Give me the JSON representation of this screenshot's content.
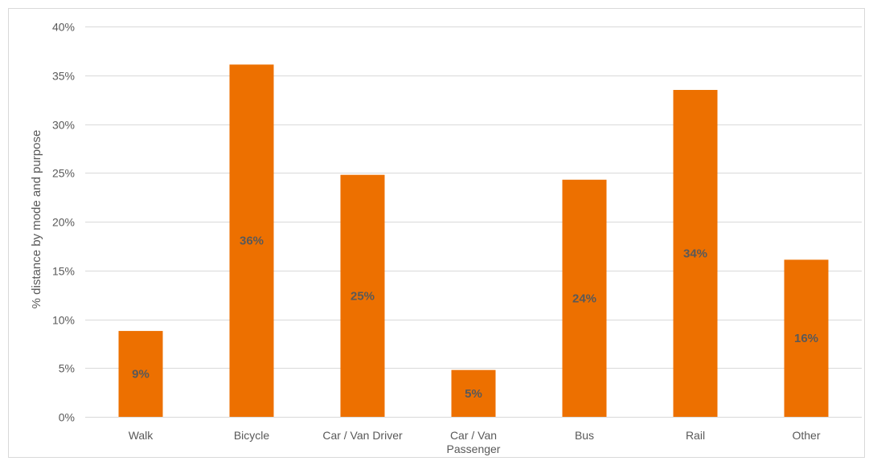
{
  "colors": {
    "bar": "#ED7000",
    "grid": "#d9d9d9",
    "text": "#595959"
  },
  "chart_data": {
    "type": "bar",
    "title": "",
    "xlabel": "",
    "ylabel": "% distance by mode and purpose",
    "categories": [
      "Walk",
      "Bicycle",
      "Car / Van Driver",
      "Car / Van Passenger",
      "Bus",
      "Rail",
      "Other"
    ],
    "category_lines": [
      [
        "Walk"
      ],
      [
        "Bicycle"
      ],
      [
        "Car / Van Driver"
      ],
      [
        "Car / Van",
        "Passenger"
      ],
      [
        "Bus"
      ],
      [
        "Rail"
      ],
      [
        "Other"
      ]
    ],
    "values": [
      8.8,
      36.1,
      24.8,
      4.8,
      24.3,
      33.5,
      16.1
    ],
    "data_labels": [
      "9%",
      "36%",
      "25%",
      "5%",
      "24%",
      "34%",
      "16%"
    ],
    "ylim": [
      0,
      40
    ],
    "yticks": [
      0,
      5,
      10,
      15,
      20,
      25,
      30,
      35,
      40
    ],
    "ytick_labels": [
      "0%",
      "5%",
      "10%",
      "15%",
      "20%",
      "25%",
      "30%",
      "35%",
      "40%"
    ],
    "grid": true,
    "legend": "none"
  }
}
